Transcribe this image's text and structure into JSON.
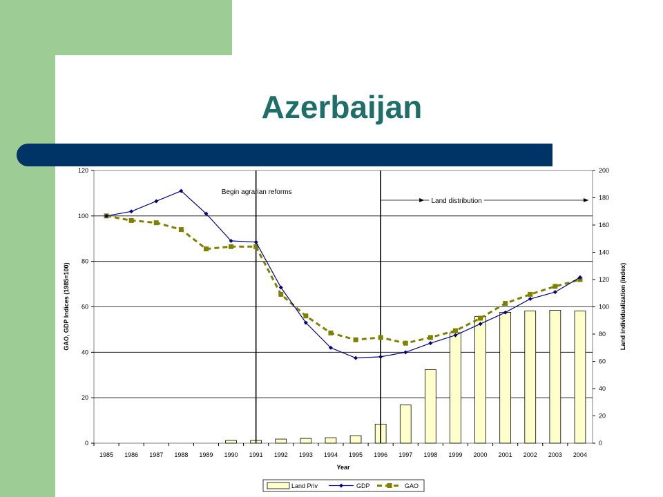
{
  "slide": {
    "title": "Azerbaijan"
  },
  "colors": {
    "green": "#9dcc94",
    "navy": "#003366",
    "title": "#1e6e6a",
    "land_bar": "#ffffcc",
    "gdp": "#000080",
    "gao": "#808000"
  },
  "chart_data": {
    "type": "bar+line",
    "xlabel": "Year",
    "ylabel": "GAO, GDP Indices (1985=100)",
    "y2label": "Land individualization (index)",
    "ylim": [
      0,
      120
    ],
    "y2lim": [
      0,
      200
    ],
    "yticks": [
      0,
      20,
      40,
      60,
      80,
      100,
      120
    ],
    "y2ticks": [
      0,
      20,
      40,
      60,
      80,
      100,
      120,
      140,
      160,
      180,
      200
    ],
    "grid": true,
    "legend_position": "bottom",
    "categories": [
      "1985",
      "1986",
      "1987",
      "1988",
      "1989",
      "1990",
      "1991",
      "1992",
      "1993",
      "1994",
      "1995",
      "1996",
      "1997",
      "1998",
      "1999",
      "2000",
      "2001",
      "2002",
      "2003",
      "2004"
    ],
    "series": [
      {
        "name": "Land Priv",
        "type": "bar",
        "axis": "right",
        "values": [
          0,
          0,
          0,
          0,
          0,
          2,
          2,
          3,
          3.5,
          4,
          5.5,
          14,
          28,
          54,
          81,
          93,
          96,
          97,
          97.5,
          97
        ]
      },
      {
        "name": "GDP",
        "type": "line",
        "axis": "left",
        "values": [
          100,
          102,
          106.5,
          111,
          101,
          89,
          88.5,
          68.5,
          53,
          42,
          37.5,
          38,
          40,
          44,
          47.5,
          52.5,
          57.5,
          63.5,
          66.5,
          73
        ]
      },
      {
        "name": "GAO",
        "type": "line-dashed",
        "axis": "left",
        "values": [
          100,
          98,
          97,
          94,
          85.5,
          86.5,
          86.5,
          65.5,
          56,
          48.5,
          45.5,
          46.5,
          44,
          46.5,
          49.5,
          55,
          61.5,
          65.5,
          69,
          72
        ]
      }
    ],
    "annotations": [
      {
        "text": "Begin agrarian reforms",
        "at_year": "1991"
      },
      {
        "text": "Land distribution",
        "from_year": "1996",
        "to_year": "2004"
      }
    ]
  }
}
